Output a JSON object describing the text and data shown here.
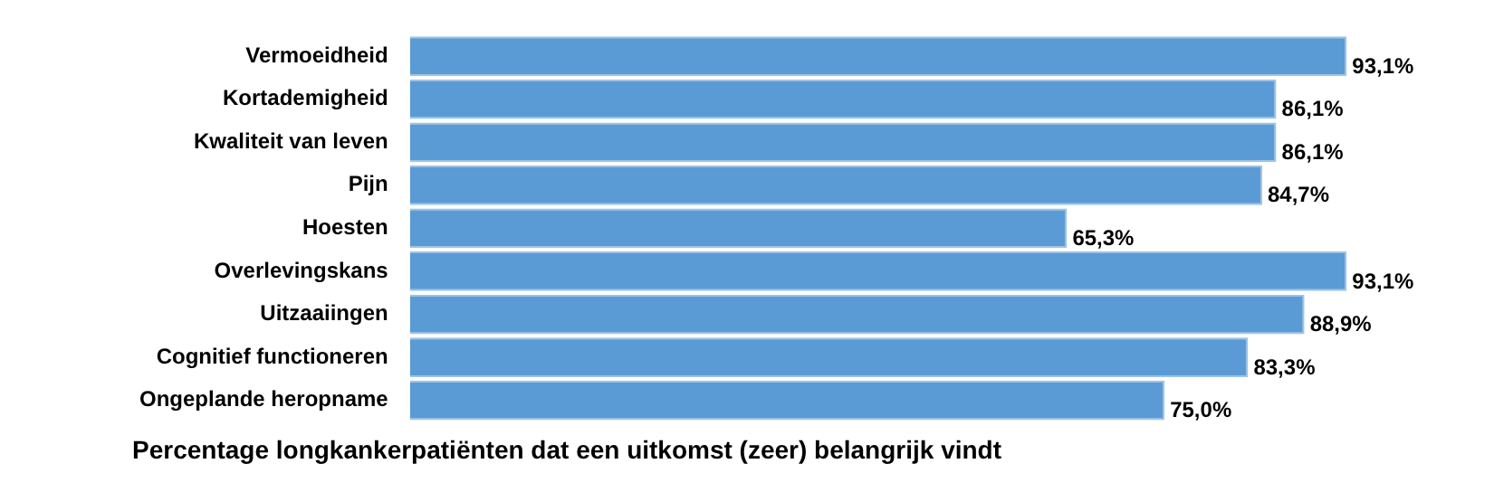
{
  "chart_data": {
    "type": "bar",
    "orientation": "horizontal",
    "title": "Percentage longkankerpatiënten dat een uitkomst (zeer) belangrijk vindt",
    "categories": [
      "Vermoeidheid",
      "Kortademigheid",
      "Kwaliteit van leven",
      "Pijn",
      "Hoesten",
      "Overlevingskans",
      "Uitzaaiingen",
      "Cognitief functioneren",
      "Ongeplande heropname"
    ],
    "values": [
      93.1,
      86.1,
      86.1,
      84.7,
      65.3,
      93.1,
      88.9,
      83.3,
      75.0
    ],
    "value_labels": [
      "93,1%",
      "86,1%",
      "86,1%",
      "84,7%",
      "65,3%",
      "93,1%",
      "88,9%",
      "83,3%",
      "75,0%"
    ],
    "color": "#5b9bd5",
    "legend": false
  }
}
